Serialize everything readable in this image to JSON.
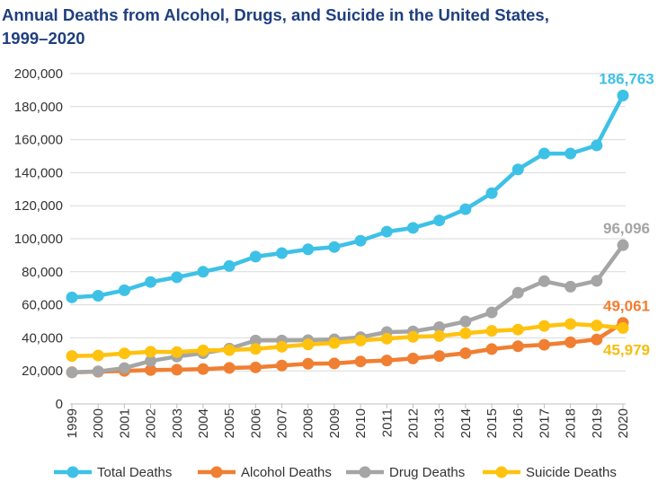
{
  "title_line1": "Annual Deaths from Alcohol, Drugs, and Suicide in the United States,",
  "title_line2": "1999–2020",
  "chart_data": {
    "type": "line",
    "title": "Annual Deaths from Alcohol, Drugs, and Suicide in the United States, 1999–2020",
    "xlabel": "",
    "ylabel": "",
    "ylim": [
      0,
      200000
    ],
    "yticks": [
      0,
      20000,
      40000,
      60000,
      80000,
      100000,
      120000,
      140000,
      160000,
      180000,
      200000
    ],
    "ytick_labels": [
      "0",
      "20,000",
      "40,000",
      "60,000",
      "80,000",
      "100,000",
      "120,000",
      "140,000",
      "160,000",
      "180,000",
      "200,000"
    ],
    "categories": [
      "1999",
      "2000",
      "2001",
      "2002",
      "2003",
      "2004",
      "2005",
      "2006",
      "2007",
      "2008",
      "2009",
      "2010",
      "2011",
      "2012",
      "2013",
      "2014",
      "2015",
      "2016",
      "2017",
      "2018",
      "2019",
      "2020"
    ],
    "grid": "horizontal",
    "legend": "bottom",
    "series": [
      {
        "name": "Total Deaths",
        "color": "#3ec1e6",
        "values": [
          64500,
          65500,
          68800,
          73800,
          76700,
          80000,
          83500,
          89200,
          91300,
          93600,
          95000,
          98800,
          104300,
          106600,
          111100,
          117900,
          127600,
          142000,
          151600,
          151600,
          156500,
          186763
        ],
        "end_label": "186,763",
        "label_color": "#3ec1e6"
      },
      {
        "name": "Alcohol Deaths",
        "color": "#f07f32",
        "values": [
          19200,
          19500,
          20000,
          20500,
          20700,
          21100,
          21800,
          22100,
          23200,
          24300,
          24500,
          25700,
          26300,
          27500,
          29000,
          30700,
          33200,
          34900,
          35800,
          37300,
          39000,
          49061
        ],
        "end_label": "49,061",
        "label_color": "#f07f32"
      },
      {
        "name": "Drug Deaths",
        "color": "#a5a5a5",
        "values": [
          19100,
          19700,
          21700,
          26000,
          28700,
          30700,
          33500,
          38400,
          38400,
          38600,
          39100,
          40400,
          43500,
          43900,
          46500,
          49900,
          55400,
          67300,
          74300,
          71000,
          74500,
          96096
        ],
        "end_label": "96,096",
        "label_color": "#a5a5a5"
      },
      {
        "name": "Suicide Deaths",
        "color": "#ffc20e",
        "values": [
          29000,
          29300,
          30600,
          31600,
          31400,
          32400,
          32600,
          33300,
          34600,
          36000,
          36900,
          38400,
          39500,
          40600,
          41100,
          42800,
          44200,
          45000,
          47200,
          48400,
          47500,
          45979
        ],
        "end_label": "45,979",
        "label_color": "#f5bd0f"
      }
    ]
  }
}
